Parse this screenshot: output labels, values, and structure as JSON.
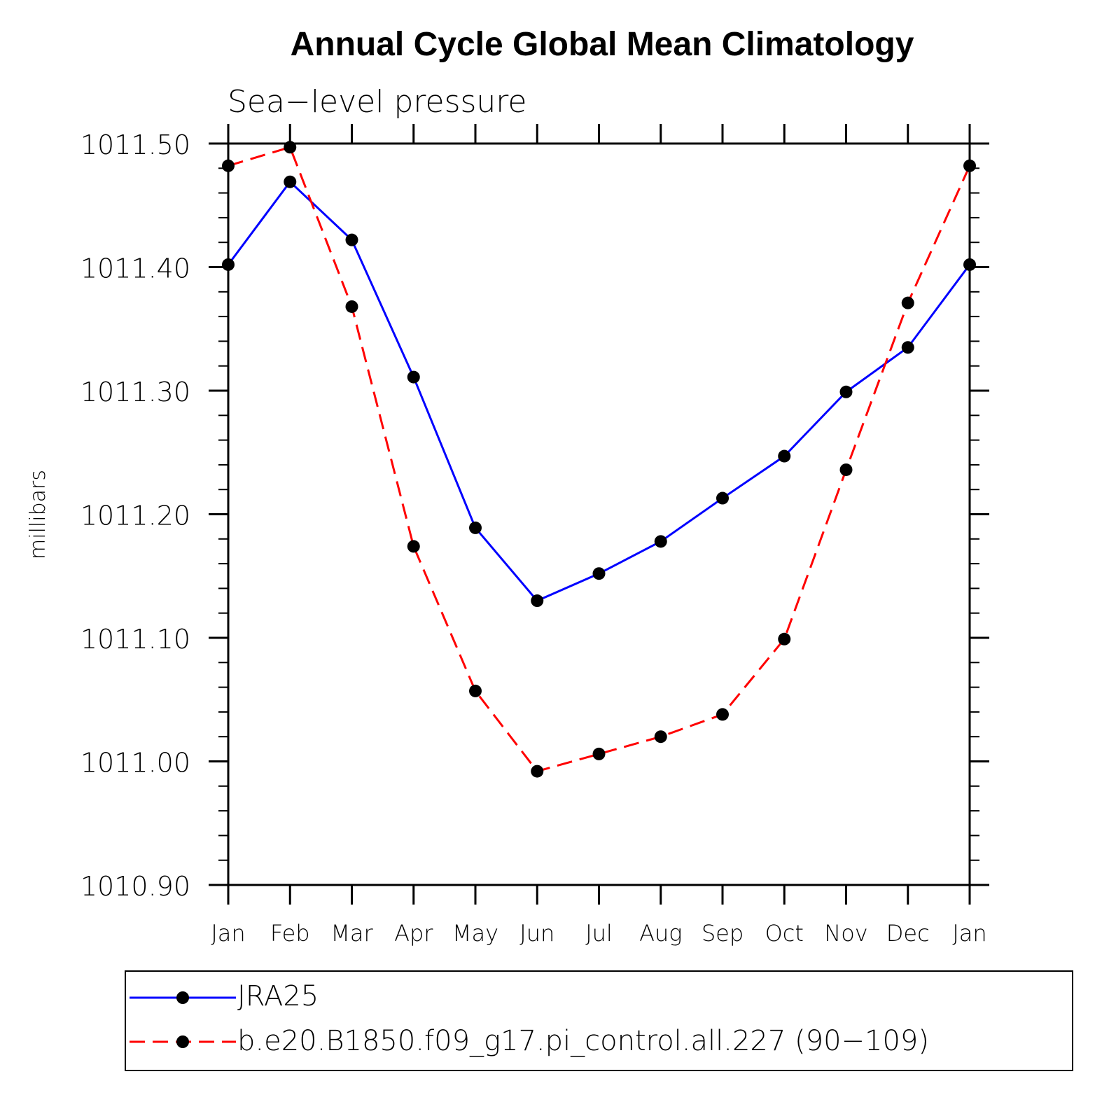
{
  "chart_data": {
    "type": "line",
    "title": "Annual Cycle Global Mean Climatology",
    "subtitle": "Sea−level pressure",
    "ylabel": "millibars",
    "xlabel": "",
    "categories": [
      "Jan",
      "Feb",
      "Mar",
      "Apr",
      "May",
      "Jun",
      "Jul",
      "Aug",
      "Sep",
      "Oct",
      "Nov",
      "Dec",
      "Jan"
    ],
    "ylim": [
      1010.9,
      1011.5
    ],
    "yticks": [
      1010.9,
      1011.0,
      1011.1,
      1011.2,
      1011.3,
      1011.4,
      1011.5
    ],
    "ytick_labels": [
      "1010.90",
      "1011.00",
      "1011.10",
      "1011.20",
      "1011.30",
      "1011.40",
      "1011.50"
    ],
    "y_minor_step": 0.02,
    "grid": false,
    "legend_position": "bottom",
    "series": [
      {
        "name": "JRA25",
        "color": "#0000ff",
        "dash": "solid",
        "values": [
          1011.402,
          1011.469,
          1011.422,
          1011.311,
          1011.189,
          1011.13,
          1011.152,
          1011.178,
          1011.213,
          1011.247,
          1011.299,
          1011.335,
          1011.402
        ]
      },
      {
        "name": "b.e20.B1850.f09_g17.pi_control.all.227 (90−109)",
        "color": "#ff0000",
        "dash": "dashed",
        "values": [
          1011.482,
          1011.497,
          1011.368,
          1011.174,
          1011.057,
          1010.992,
          1011.006,
          1011.02,
          1011.038,
          1011.099,
          1011.236,
          1011.371,
          1011.482
        ]
      }
    ]
  }
}
